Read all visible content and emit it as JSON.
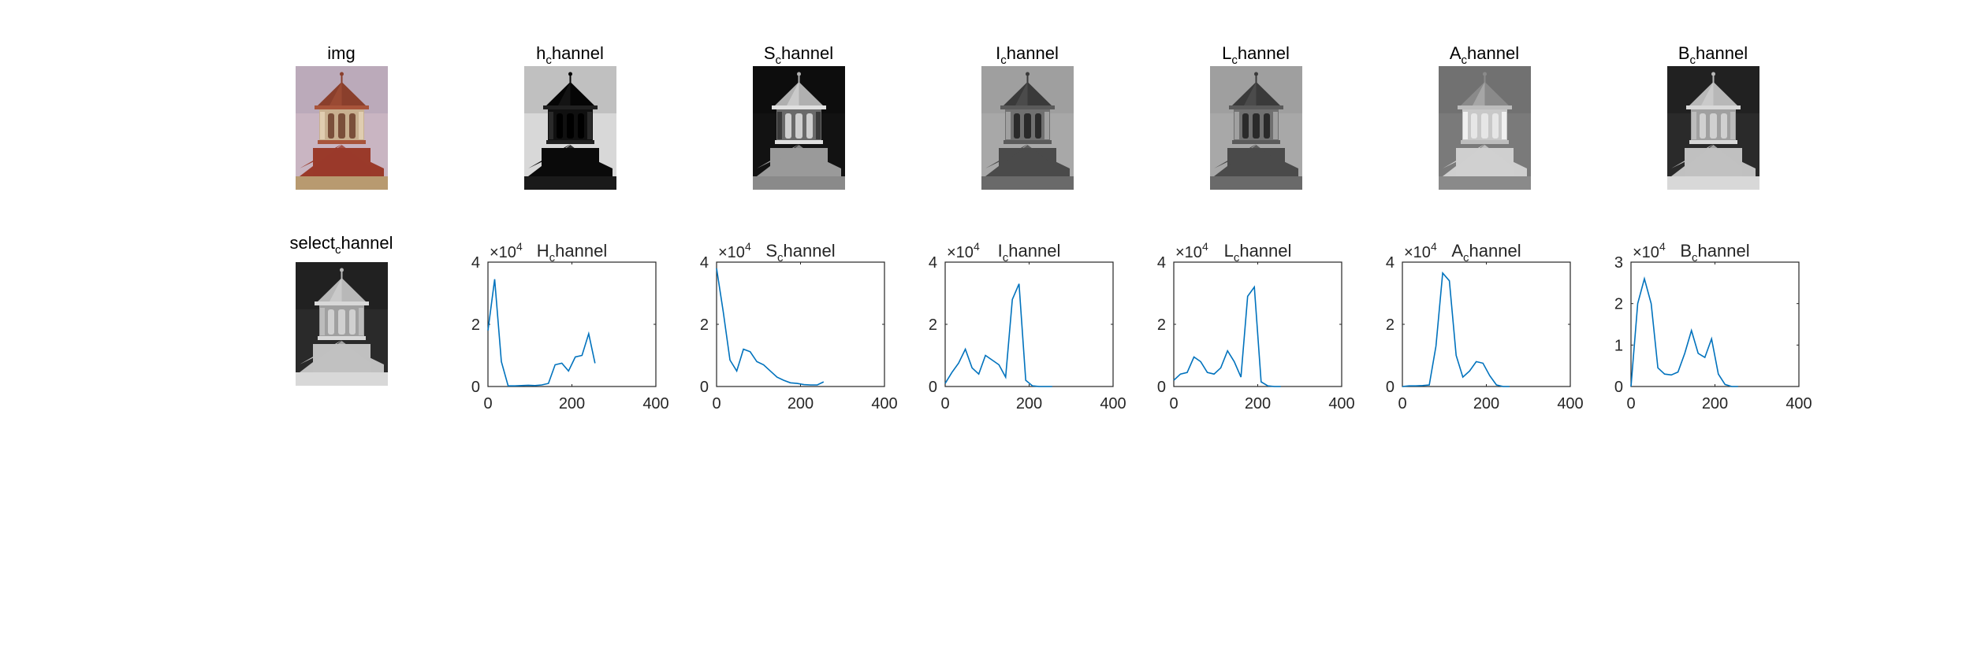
{
  "figure": {
    "top_row": [
      {
        "title_main": "img",
        "title_sub": "",
        "title_rest": "",
        "palette": "color"
      },
      {
        "title_main": "h",
        "title_sub": "c",
        "title_rest": "hannel",
        "palette": "hue"
      },
      {
        "title_main": "S",
        "title_sub": "c",
        "title_rest": "hannel",
        "palette": "sat"
      },
      {
        "title_main": "I",
        "title_sub": "c",
        "title_rest": "hannel",
        "palette": "gray"
      },
      {
        "title_main": "L",
        "title_sub": "c",
        "title_rest": "hannel",
        "palette": "gray"
      },
      {
        "title_main": "A",
        "title_sub": "c",
        "title_rest": "hannel",
        "palette": "achan"
      },
      {
        "title_main": "B",
        "title_sub": "c",
        "title_rest": "hannel",
        "palette": "bchan"
      }
    ],
    "select_panel": {
      "title_main": "select",
      "title_sub": "c",
      "title_rest": "hannel",
      "palette": "bchan"
    }
  },
  "chart_data": [
    {
      "type": "line",
      "title_main": "H",
      "title_sub": "c",
      "title_rest": "hannel",
      "exponent_base": "×10",
      "exponent_power": "4",
      "xlim": [
        0,
        400
      ],
      "xticks": [
        "0",
        "200",
        "400"
      ],
      "ylim": [
        0,
        4
      ],
      "yticks": [
        "0",
        "2",
        "4"
      ],
      "x": [
        0,
        16,
        32,
        48,
        64,
        80,
        96,
        112,
        128,
        144,
        160,
        176,
        192,
        208,
        224,
        240,
        255
      ],
      "y": [
        1.8,
        3.45,
        0.8,
        0.02,
        0.02,
        0.03,
        0.04,
        0.03,
        0.05,
        0.1,
        0.7,
        0.75,
        0.5,
        0.95,
        1.0,
        1.7,
        0.75
      ]
    },
    {
      "type": "line",
      "title_main": "S",
      "title_sub": "c",
      "title_rest": "hannel",
      "exponent_base": "×10",
      "exponent_power": "4",
      "xlim": [
        0,
        400
      ],
      "xticks": [
        "0",
        "200",
        "400"
      ],
      "ylim": [
        0,
        4
      ],
      "yticks": [
        "0",
        "2",
        "4"
      ],
      "x": [
        0,
        16,
        32,
        48,
        64,
        80,
        96,
        112,
        128,
        144,
        160,
        176,
        192,
        208,
        224,
        240,
        255
      ],
      "y": [
        3.8,
        2.4,
        0.85,
        0.5,
        1.2,
        1.12,
        0.8,
        0.7,
        0.5,
        0.3,
        0.2,
        0.12,
        0.1,
        0.06,
        0.05,
        0.05,
        0.15
      ]
    },
    {
      "type": "line",
      "title_main": "I",
      "title_sub": "c",
      "title_rest": "hannel",
      "exponent_base": "×10",
      "exponent_power": "4",
      "xlim": [
        0,
        400
      ],
      "xticks": [
        "0",
        "200",
        "400"
      ],
      "ylim": [
        0,
        4
      ],
      "yticks": [
        "0",
        "2",
        "4"
      ],
      "x": [
        0,
        16,
        32,
        48,
        64,
        80,
        96,
        112,
        128,
        144,
        160,
        176,
        192,
        208,
        224,
        240,
        255
      ],
      "y": [
        0.1,
        0.45,
        0.75,
        1.2,
        0.6,
        0.4,
        1.0,
        0.85,
        0.7,
        0.3,
        2.8,
        3.3,
        0.2,
        0.02,
        0.0,
        0.0,
        0.0
      ]
    },
    {
      "type": "line",
      "title_main": "L",
      "title_sub": "c",
      "title_rest": "hannel",
      "exponent_base": "×10",
      "exponent_power": "4",
      "xlim": [
        0,
        400
      ],
      "xticks": [
        "0",
        "200",
        "400"
      ],
      "ylim": [
        0,
        4
      ],
      "yticks": [
        "0",
        "2",
        "4"
      ],
      "x": [
        0,
        16,
        32,
        48,
        64,
        80,
        96,
        112,
        128,
        144,
        160,
        176,
        192,
        208,
        224,
        240,
        255
      ],
      "y": [
        0.2,
        0.4,
        0.45,
        0.95,
        0.8,
        0.45,
        0.4,
        0.6,
        1.15,
        0.8,
        0.3,
        2.9,
        3.2,
        0.15,
        0.02,
        0.0,
        0.0
      ]
    },
    {
      "type": "line",
      "title_main": "A",
      "title_sub": "c",
      "title_rest": "hannel",
      "exponent_base": "×10",
      "exponent_power": "4",
      "xlim": [
        0,
        400
      ],
      "xticks": [
        "0",
        "200",
        "400"
      ],
      "ylim": [
        0,
        4
      ],
      "yticks": [
        "0",
        "2",
        "4"
      ],
      "x": [
        0,
        16,
        32,
        48,
        64,
        80,
        96,
        112,
        128,
        144,
        160,
        176,
        192,
        208,
        224,
        240,
        255
      ],
      "y": [
        0.0,
        0.02,
        0.02,
        0.03,
        0.05,
        1.3,
        3.65,
        3.4,
        1.0,
        0.3,
        0.5,
        0.8,
        0.75,
        0.35,
        0.05,
        0.0,
        0.0
      ]
    },
    {
      "type": "line",
      "title_main": "B",
      "title_sub": "c",
      "title_rest": "hannel",
      "exponent_base": "×10",
      "exponent_power": "4",
      "xlim": [
        0,
        400
      ],
      "xticks": [
        "0",
        "200",
        "400"
      ],
      "ylim": [
        0,
        3
      ],
      "yticks": [
        "0",
        "1",
        "2",
        "3"
      ],
      "x": [
        0,
        16,
        32,
        48,
        64,
        80,
        96,
        112,
        128,
        144,
        160,
        176,
        192,
        208,
        224,
        240,
        255
      ],
      "y": [
        0.0,
        2.0,
        2.6,
        2.0,
        0.45,
        0.3,
        0.28,
        0.35,
        0.8,
        1.35,
        0.8,
        0.7,
        1.15,
        0.3,
        0.05,
        0.0,
        0.0
      ]
    }
  ],
  "colors": {
    "line": "#0072BD",
    "axis": "#262626",
    "background": "#ffffff"
  }
}
